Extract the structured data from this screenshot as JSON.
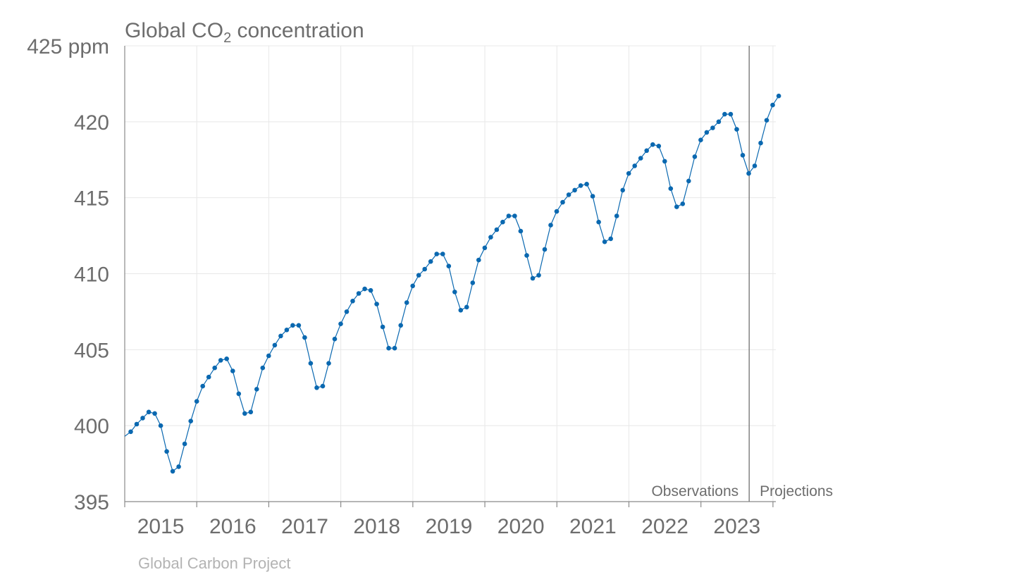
{
  "chart_data": {
    "type": "line",
    "title": "Global CO",
    "title_subscript": "2",
    "title_suffix": " concentration",
    "ylabel": "",
    "xlabel": "",
    "y_unit_label": "425 ppm",
    "ylim": [
      395,
      425
    ],
    "y_ticks": [
      395,
      400,
      405,
      410,
      415,
      420,
      425
    ],
    "y_tick_labels": [
      "395",
      "400",
      "405",
      "410",
      "415",
      "420",
      "425 ppm"
    ],
    "xlim": [
      2015.0,
      2024.04
    ],
    "x_tick_positions": [
      2015,
      2016,
      2017,
      2018,
      2019,
      2020,
      2021,
      2022,
      2023,
      2024
    ],
    "x_tick_labels": [
      "2015",
      "2016",
      "2017",
      "2018",
      "2019",
      "2020",
      "2021",
      "2022",
      "2023"
    ],
    "x_label_years": [
      2015,
      2016,
      2017,
      2018,
      2019,
      2020,
      2021,
      2022,
      2023
    ],
    "grid": true,
    "split_x": 2023.67,
    "split_left_label": "Observations",
    "split_right_label": "Projections",
    "source": "Global Carbon Project",
    "series": [
      {
        "color": "#0a68b0",
        "start_year": 2015.0,
        "step": 0.0833,
        "values": [
          399.3,
          399.6,
          400.1,
          400.5,
          400.9,
          400.8,
          400.0,
          398.3,
          397.0,
          397.3,
          398.8,
          400.3,
          401.6,
          402.6,
          403.2,
          403.8,
          404.3,
          404.4,
          403.6,
          402.1,
          400.8,
          400.9,
          402.4,
          403.8,
          404.6,
          405.3,
          405.9,
          406.3,
          406.6,
          406.6,
          405.8,
          404.1,
          402.5,
          402.6,
          404.1,
          405.7,
          406.7,
          407.5,
          408.2,
          408.7,
          409.0,
          408.9,
          408.0,
          406.5,
          405.1,
          405.1,
          406.6,
          408.1,
          409.2,
          409.9,
          410.3,
          410.8,
          411.3,
          411.3,
          410.5,
          408.8,
          407.6,
          407.8,
          409.4,
          410.9,
          411.7,
          412.4,
          412.9,
          413.4,
          413.8,
          413.8,
          412.8,
          411.2,
          409.7,
          409.9,
          411.6,
          413.2,
          414.1,
          414.7,
          415.2,
          415.5,
          415.8,
          415.9,
          415.1,
          413.4,
          412.1,
          412.3,
          413.8,
          415.5,
          416.6,
          417.1,
          417.6,
          418.1,
          418.5,
          418.4,
          417.4,
          415.6,
          414.4,
          414.6,
          416.1,
          417.7,
          418.8,
          419.3,
          419.6,
          420.0,
          420.5,
          420.5,
          419.5,
          417.8,
          416.6,
          417.1,
          418.6,
          420.1,
          421.1,
          421.7
        ]
      }
    ]
  }
}
